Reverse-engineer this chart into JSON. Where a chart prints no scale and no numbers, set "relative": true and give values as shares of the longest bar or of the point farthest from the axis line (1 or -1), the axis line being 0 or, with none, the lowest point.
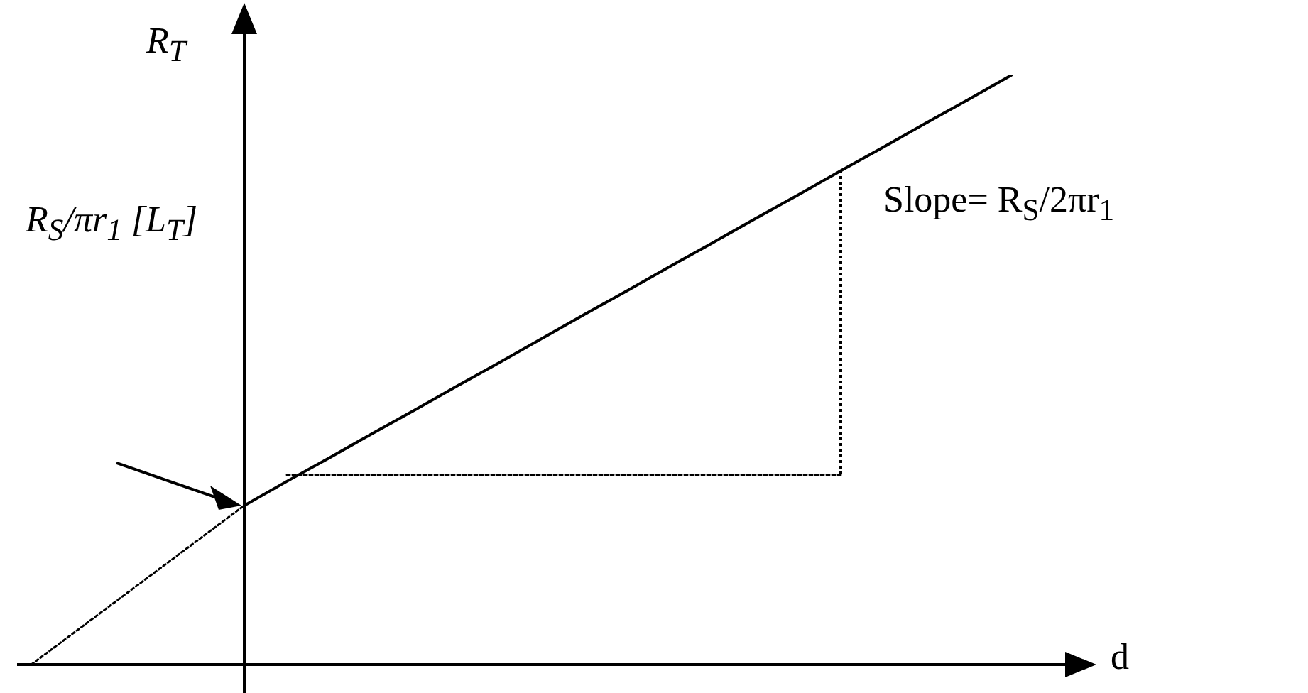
{
  "chart_data": {
    "type": "line",
    "relative": true,
    "ylabel": "R$_{T}$",
    "xlabel": "d",
    "categories": [
      null,
      null,
      null,
      null,
      null,
      null,
      null,
      null,
      null,
      null,
      null,
      null,
      null,
      null,
      null,
      null,
      null,
      null,
      null,
      null,
      null,
      null,
      null,
      null
    ],
    "series": [
      {
        "color": "#000000",
        "line_style": "dotted",
        "values": [
          0,
          0.054,
          0.108,
          0.162,
          0.216,
          0.27,
          null,
          null,
          null,
          null,
          null,
          null,
          null,
          null,
          null,
          null,
          null,
          null,
          null,
          null,
          null,
          null,
          null,
          null
        ]
      },
      {
        "color": "#000000",
        "line_style": "solid",
        "values": [
          null,
          null,
          null,
          null,
          null,
          0.27,
          0.311,
          0.351,
          0.392,
          0.432,
          0.473,
          0.513,
          0.554,
          0.595,
          0.635,
          0.676,
          0.716,
          0.757,
          0.797,
          0.838,
          0.878,
          0.919,
          0.959,
          1
        ]
      },
      {
        "color": "#000000",
        "line_style": "dotted",
        "values": [
          null,
          null,
          null,
          null,
          null,
          null,
          0.322,
          0.322,
          0.322,
          0.322,
          0.322,
          0.322,
          0.322,
          0.322,
          0.322,
          0.322,
          0.322,
          0.322,
          0.322,
          0.322,
          null,
          null,
          null,
          null
        ]
      }
    ],
    "annotations": [
      "R$_{S}$/πr$_{1}$ [L$_{T}$]",
      "Slope= R$_{S}$/2πr$_{1}$"
    ],
    "legend": false,
    "grid": false,
    "marker": "none"
  }
}
